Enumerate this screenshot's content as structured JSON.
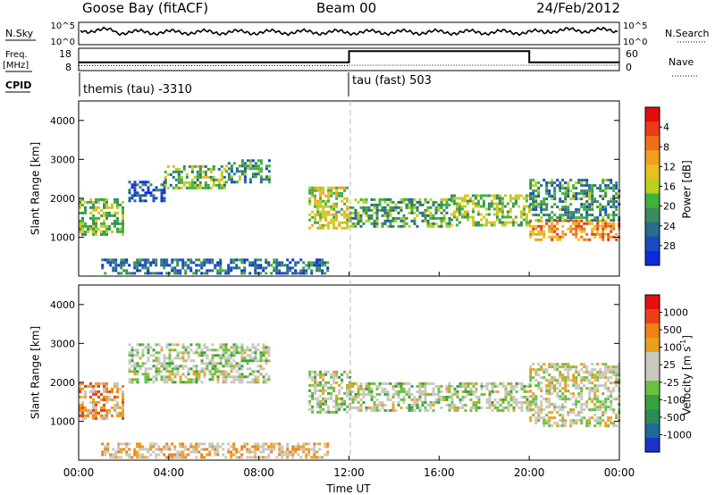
{
  "header": {
    "station": "Goose Bay (fitACF)",
    "beam": "Beam 00",
    "date": "24/Feb/2012"
  },
  "summary": {
    "nsky_label": "N.Sky",
    "nsearch_label": "N.Search",
    "freq_label_1": "Freq.",
    "freq_label_2": "[MHz]",
    "nave_label": "Nave",
    "cpid_label": "CPID",
    "noise_ticks_left": [
      "10^5",
      "10^0"
    ],
    "noise_ticks_right": [
      "10^5",
      "10^0"
    ],
    "freq_ticks": [
      "18",
      "8"
    ],
    "nave_ticks": [
      "60",
      "0"
    ],
    "cpid_segments": [
      {
        "label": "themis (tau) -3310",
        "start_hour": 0,
        "end_hour": 12
      },
      {
        "label": "tau (fast) 503",
        "start_hour": 12,
        "end_hour": 24
      }
    ],
    "freq_series": {
      "name": "Freq",
      "points": [
        [
          0,
          10.2
        ],
        [
          12,
          10.2
        ],
        [
          12,
          10.4
        ],
        [
          24,
          10.4
        ]
      ]
    },
    "nave_series": {
      "name": "Nave",
      "points": [
        [
          0,
          22
        ],
        [
          12,
          22
        ],
        [
          12,
          52
        ],
        [
          20,
          52
        ],
        [
          20,
          22
        ],
        [
          24,
          22
        ]
      ]
    }
  },
  "chart_data": [
    {
      "type": "heatmap",
      "ylabel": "Slant Range [km]",
      "y_ticks": [
        "1000",
        "2000",
        "3000",
        "4000"
      ],
      "ylim": [
        0,
        4500
      ],
      "xlim": [
        0,
        24
      ],
      "colorbar": {
        "title": "Power [dB]",
        "ticks": [
          "4",
          "8",
          "12",
          "16",
          "20",
          "24",
          "28"
        ],
        "colors": [
          "#0d2bdc",
          "#1a49c4",
          "#2a6a8c",
          "#3a8c5a",
          "#40b040",
          "#b8d020",
          "#e8c020",
          "#f0a020",
          "#f07018",
          "#ee3a18",
          "#e40d0d"
        ]
      },
      "regions": [
        {
          "x0": 0.0,
          "x1": 2.0,
          "y0": 1100,
          "y1": 2000,
          "level": 0.45
        },
        {
          "x0": 2.2,
          "x1": 3.8,
          "y0": 1950,
          "y1": 2450,
          "level": 0.15
        },
        {
          "x0": 3.8,
          "x1": 6.5,
          "y0": 2250,
          "y1": 2850,
          "level": 0.4
        },
        {
          "x0": 6.5,
          "x1": 8.5,
          "y0": 2400,
          "y1": 3000,
          "level": 0.3
        },
        {
          "x0": 10.2,
          "x1": 11.9,
          "y0": 1200,
          "y1": 2300,
          "level": 0.55
        },
        {
          "x0": 12.0,
          "x1": 16.5,
          "y0": 1250,
          "y1": 2000,
          "level": 0.35
        },
        {
          "x0": 16.5,
          "x1": 20.0,
          "y0": 1300,
          "y1": 2100,
          "level": 0.45
        },
        {
          "x0": 20.0,
          "x1": 24.0,
          "y0": 900,
          "y1": 1450,
          "level": 0.75
        },
        {
          "x0": 20.0,
          "x1": 24.0,
          "y0": 1450,
          "y1": 2500,
          "level": 0.3
        },
        {
          "x0": 1.0,
          "x1": 11.0,
          "y0": 50,
          "y1": 450,
          "level": 0.2
        }
      ]
    },
    {
      "type": "heatmap",
      "ylabel": "Slant Range [km]",
      "y_ticks": [
        "1000",
        "2000",
        "3000",
        "4000"
      ],
      "ylim": [
        0,
        4500
      ],
      "xlim": [
        0,
        24
      ],
      "xlabel": "Time UT",
      "x_ticks": [
        "00:00",
        "04:00",
        "08:00",
        "12:00",
        "16:00",
        "20:00",
        "00:00"
      ],
      "colorbar": {
        "title": "Velocity [m s^-1]",
        "ticks": [
          "1000",
          "500",
          "100",
          "25",
          "-25",
          "-100",
          "-500",
          "-1000"
        ],
        "colors": [
          "#1b34c8",
          "#1f6a9a",
          "#2a8c5a",
          "#3aa040",
          "#6cc040",
          "#c8c8c0",
          "#c8c8c0",
          "#e8a020",
          "#f08018",
          "#ee4018",
          "#e41010"
        ]
      },
      "regions": [
        {
          "x0": 0.0,
          "x1": 2.0,
          "y0": 1100,
          "y1": 2000,
          "level": 0.75
        },
        {
          "x0": 2.2,
          "x1": 8.5,
          "y0": 2000,
          "y1": 3000,
          "level": 0.5
        },
        {
          "x0": 10.2,
          "x1": 12.0,
          "y0": 1200,
          "y1": 2300,
          "level": 0.5
        },
        {
          "x0": 12.0,
          "x1": 20.0,
          "y0": 1250,
          "y1": 2000,
          "level": 0.5
        },
        {
          "x0": 20.0,
          "x1": 24.0,
          "y0": 900,
          "y1": 2500,
          "level": 0.55
        },
        {
          "x0": 1.0,
          "x1": 11.0,
          "y0": 50,
          "y1": 450,
          "level": 0.65
        }
      ]
    }
  ]
}
